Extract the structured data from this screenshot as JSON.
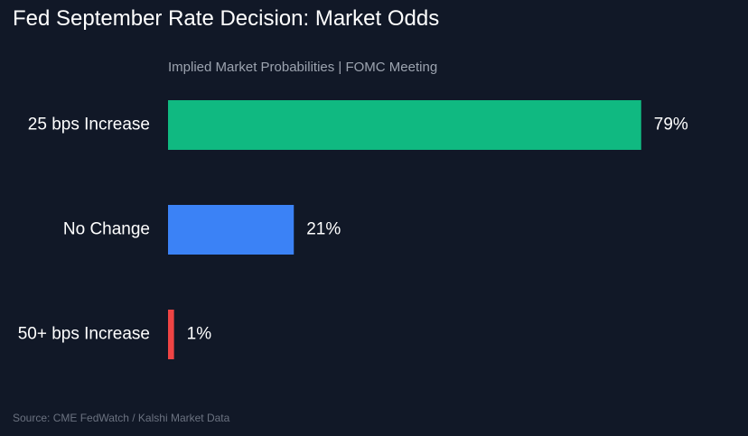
{
  "title": "Fed September Rate Decision: Market Odds",
  "subtitle": "Implied Market Probabilities | FOMC Meeting",
  "source": "Source: CME FedWatch / Kalshi Market Data",
  "chart_data": {
    "type": "bar",
    "orientation": "horizontal",
    "categories": [
      "25 bps Increase",
      "No Change",
      "50+ bps Increase"
    ],
    "values": [
      79,
      21,
      1
    ],
    "value_labels": [
      "79%",
      "21%",
      "1%"
    ],
    "colors": [
      "#10b981",
      "#3b82f6",
      "#ef4444"
    ],
    "xlim": [
      0,
      100
    ],
    "grid": false,
    "legend": "none",
    "unit": "%"
  }
}
